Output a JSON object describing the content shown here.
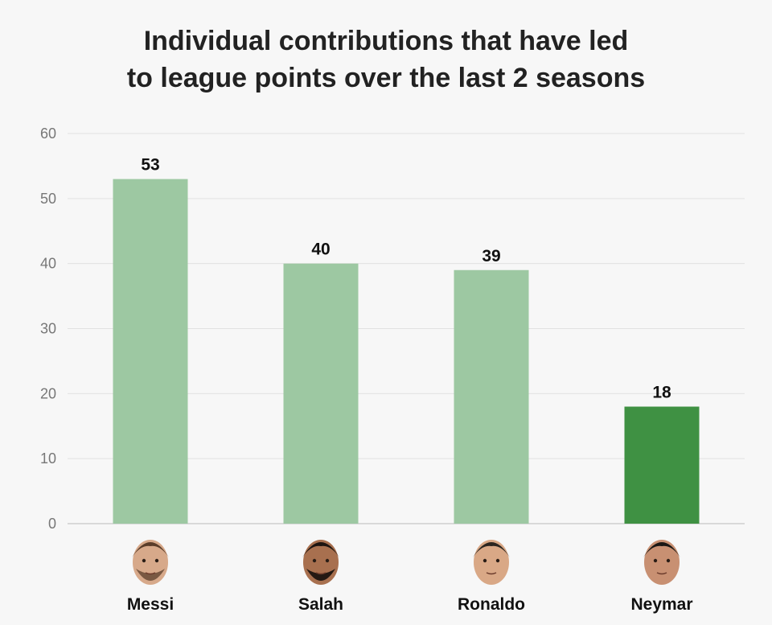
{
  "chart_data": {
    "type": "bar",
    "title_lines": [
      "Individual contributions that have led",
      "to league points over the last 2 seasons"
    ],
    "xlabel": "",
    "ylabel": "",
    "ylim": [
      0,
      60
    ],
    "yticks": [
      0,
      10,
      20,
      30,
      40,
      50,
      60
    ],
    "grid": true,
    "categories": [
      "Messi",
      "Salah",
      "Ronaldo",
      "Neymar"
    ],
    "values": [
      53,
      40,
      39,
      18
    ],
    "highlight": "Neymar",
    "colors": {
      "default": "#9dc8a2",
      "highlight": "#3f9143",
      "grid": "#e2e2e2",
      "axis": "#cfcfcf"
    },
    "icons": [
      "messi-face-icon",
      "salah-face-icon",
      "ronaldo-face-icon",
      "neymar-face-icon"
    ]
  }
}
